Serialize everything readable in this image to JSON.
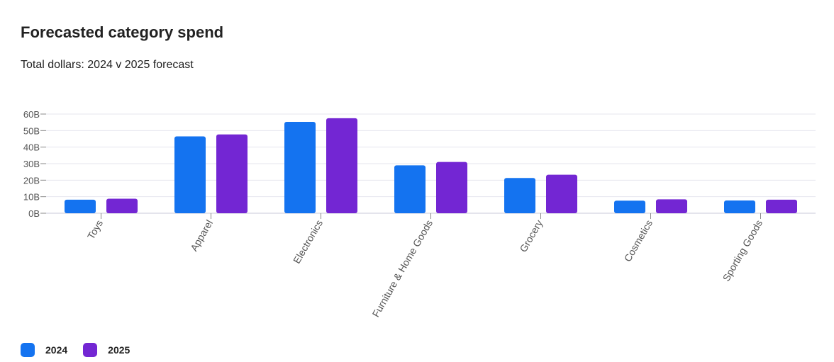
{
  "header": {
    "title": "Forecasted category spend",
    "subtitle": "Total dollars: 2024 v 2025 forecast"
  },
  "legend": {
    "items": [
      {
        "label": "2024",
        "color": "#1473F0"
      },
      {
        "label": "2025",
        "color": "#7326D3"
      }
    ]
  },
  "chart_data": {
    "type": "bar",
    "title": "Forecasted category spend",
    "subtitle": "Total dollars: 2024 v 2025 forecast",
    "xlabel": "",
    "ylabel": "",
    "categories": [
      "Toys",
      "Apparel",
      "Electronics",
      "Furniture & Home Goods",
      "Grocery",
      "Cosmetics",
      "Sporting Goods"
    ],
    "series": [
      {
        "name": "2024",
        "color": "#1473F0",
        "values": [
          8.2,
          46.5,
          55.3,
          29.0,
          21.3,
          7.6,
          7.7
        ]
      },
      {
        "name": "2025",
        "color": "#7326D3",
        "values": [
          8.8,
          47.7,
          57.5,
          31.0,
          23.3,
          8.4,
          8.2
        ]
      }
    ],
    "ylim": [
      0,
      60
    ],
    "yticks": [
      0,
      10,
      20,
      30,
      40,
      50,
      60
    ],
    "ytick_labels": [
      "0B",
      "10B",
      "20B",
      "30B",
      "40B",
      "50B",
      "60B"
    ],
    "grid": true,
    "legend_position": "bottom-left"
  }
}
